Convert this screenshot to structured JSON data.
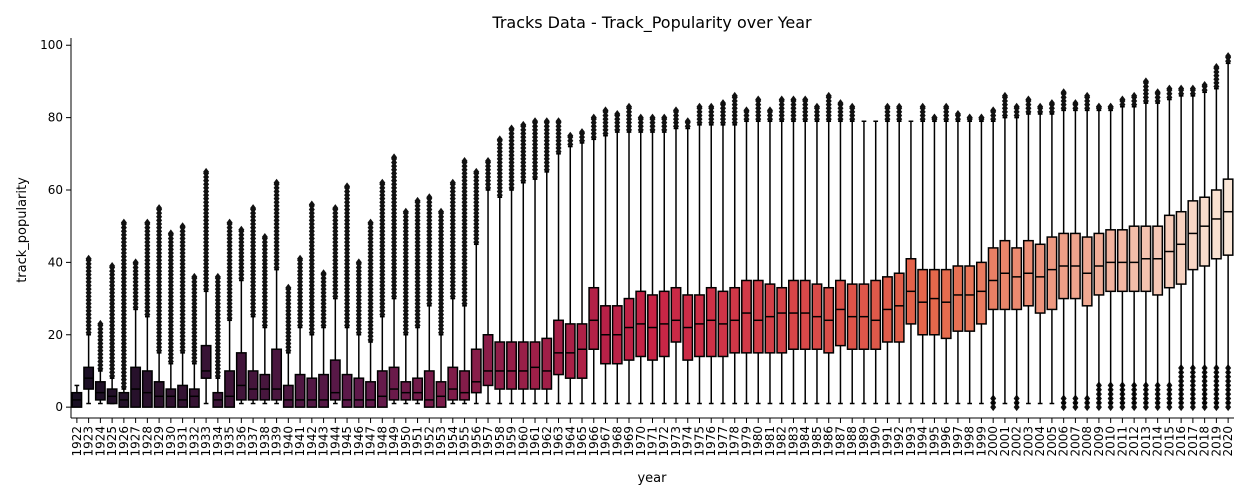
{
  "chart_data": {
    "type": "box",
    "title": "Tracks Data - Track_Popularity over Year",
    "xlabel": "year",
    "ylabel": "track_popularity",
    "ylim": [
      -3,
      102
    ],
    "yticks": [
      0,
      20,
      40,
      60,
      80,
      100
    ],
    "years": [
      1922,
      1923,
      1924,
      1925,
      1926,
      1927,
      1928,
      1929,
      1930,
      1931,
      1932,
      1933,
      1934,
      1935,
      1936,
      1937,
      1938,
      1939,
      1940,
      1941,
      1942,
      1943,
      1944,
      1945,
      1946,
      1947,
      1948,
      1949,
      1950,
      1951,
      1952,
      1953,
      1954,
      1955,
      1956,
      1957,
      1958,
      1959,
      1960,
      1961,
      1962,
      1963,
      1964,
      1965,
      1966,
      1967,
      1968,
      1969,
      1970,
      1971,
      1972,
      1973,
      1974,
      1975,
      1976,
      1977,
      1978,
      1979,
      1980,
      1981,
      1982,
      1983,
      1984,
      1985,
      1986,
      1987,
      1988,
      1989,
      1990,
      1991,
      1992,
      1993,
      1994,
      1995,
      1996,
      1997,
      1998,
      1999,
      2000,
      2001,
      2002,
      2003,
      2004,
      2005,
      2006,
      2007,
      2008,
      2009,
      2010,
      2011,
      2012,
      2013,
      2014,
      2015,
      2016,
      2017,
      2018,
      2019,
      2020
    ],
    "q1": [
      0,
      5,
      2,
      1,
      0,
      0,
      0,
      0,
      0,
      0,
      0,
      8,
      0,
      0,
      2,
      2,
      2,
      2,
      0,
      0,
      0,
      0,
      2,
      0,
      0,
      0,
      0,
      2,
      2,
      2,
      0,
      0,
      2,
      2,
      4,
      6,
      5,
      5,
      5,
      5,
      5,
      9,
      8,
      8,
      16,
      12,
      12,
      13,
      14,
      13,
      14,
      18,
      13,
      14,
      14,
      14,
      15,
      15,
      15,
      15,
      15,
      16,
      16,
      16,
      15,
      17,
      16,
      16,
      16,
      18,
      18,
      23,
      20,
      20,
      19,
      21,
      21,
      23,
      27,
      27,
      27,
      28,
      26,
      27,
      30,
      30,
      28,
      31,
      32,
      32,
      32,
      32,
      31,
      33,
      34,
      38,
      39,
      41,
      42
    ],
    "median": [
      2,
      8,
      4,
      3,
      2,
      5,
      4,
      3,
      3,
      2,
      3,
      10,
      2,
      3,
      6,
      5,
      5,
      5,
      2,
      2,
      2,
      2,
      4,
      2,
      2,
      2,
      3,
      5,
      4,
      4,
      2,
      3,
      5,
      4,
      7,
      10,
      10,
      10,
      10,
      11,
      10,
      15,
      15,
      16,
      24,
      20,
      20,
      22,
      23,
      22,
      23,
      24,
      22,
      23,
      24,
      23,
      24,
      26,
      24,
      25,
      26,
      26,
      26,
      25,
      24,
      27,
      25,
      25,
      24,
      27,
      28,
      32,
      29,
      30,
      29,
      31,
      31,
      32,
      35,
      37,
      36,
      37,
      36,
      38,
      39,
      39,
      37,
      39,
      40,
      40,
      40,
      41,
      41,
      43,
      45,
      48,
      50,
      52,
      54
    ],
    "q3": [
      4,
      11,
      7,
      5,
      4,
      11,
      10,
      7,
      5,
      6,
      5,
      17,
      4,
      10,
      15,
      10,
      9,
      16,
      6,
      9,
      8,
      9,
      13,
      9,
      8,
      7,
      10,
      11,
      7,
      8,
      10,
      7,
      11,
      10,
      16,
      20,
      18,
      18,
      18,
      18,
      19,
      24,
      23,
      23,
      33,
      28,
      28,
      30,
      32,
      31,
      32,
      33,
      31,
      31,
      33,
      32,
      33,
      35,
      35,
      34,
      33,
      35,
      35,
      34,
      33,
      35,
      34,
      34,
      35,
      36,
      37,
      41,
      38,
      38,
      38,
      39,
      39,
      40,
      44,
      46,
      44,
      46,
      45,
      47,
      48,
      48,
      47,
      48,
      49,
      49,
      50,
      50,
      50,
      53,
      54,
      57,
      58,
      60,
      63
    ],
    "upper": [
      6,
      20,
      10,
      8,
      5,
      27,
      25,
      15,
      12,
      15,
      12,
      32,
      8,
      24,
      35,
      25,
      22,
      38,
      15,
      22,
      20,
      22,
      30,
      22,
      20,
      18,
      25,
      30,
      20,
      22,
      28,
      20,
      30,
      28,
      45,
      60,
      58,
      60,
      62,
      63,
      65,
      70,
      72,
      73,
      74,
      75,
      76,
      76,
      76,
      76,
      76,
      77,
      77,
      78,
      78,
      78,
      78,
      79,
      79,
      79,
      79,
      79,
      79,
      79,
      79,
      79,
      79,
      79,
      79,
      79,
      79,
      79,
      79,
      79,
      79,
      79,
      79,
      79,
      79,
      80,
      80,
      81,
      81,
      81,
      82,
      82,
      82,
      82,
      82,
      83,
      83,
      84,
      84,
      85,
      86,
      86,
      87,
      88,
      95
    ],
    "flier_top": [
      6,
      41,
      23,
      39,
      51,
      40,
      51,
      55,
      48,
      50,
      36,
      65,
      36,
      51,
      49,
      55,
      47,
      62,
      33,
      41,
      56,
      37,
      55,
      61,
      40,
      51,
      62,
      69,
      54,
      57,
      58,
      54,
      62,
      68,
      65,
      68,
      74,
      77,
      78,
      79,
      79,
      79,
      75,
      76,
      80,
      82,
      81,
      83,
      80,
      80,
      80,
      82,
      79,
      83,
      83,
      84,
      86,
      82,
      85,
      82,
      85,
      85,
      85,
      83,
      86,
      84,
      83,
      79,
      79,
      83,
      83,
      79,
      83,
      80,
      83,
      81,
      80,
      80,
      82,
      86,
      83,
      85,
      83,
      84,
      87,
      84,
      86,
      83,
      83,
      85,
      86,
      90,
      87,
      88,
      88,
      88,
      89,
      94,
      97
    ]
  }
}
